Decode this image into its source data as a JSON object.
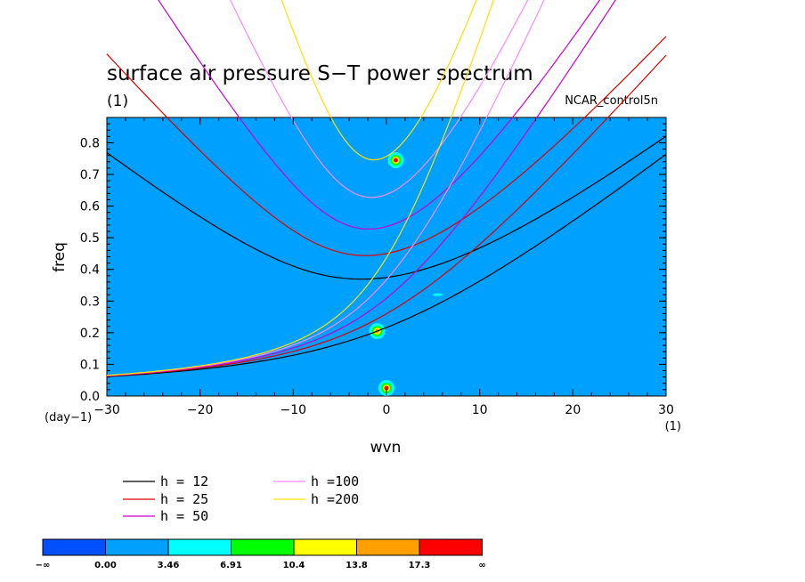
{
  "chart_data": {
    "type": "heatmap",
    "title": "surface air pressure S−T power spectrum",
    "subtitle_left": "(1)",
    "subtitle_right": "NCAR_control5n",
    "xlabel": "wvn",
    "ylabel": "freq",
    "x_unit": "(1)",
    "y_unit": "(day−1)",
    "xlim": [
      -30,
      30
    ],
    "ylim": [
      0,
      0.88
    ],
    "xticks": [
      -30,
      -20,
      -10,
      0,
      10,
      20,
      30
    ],
    "yticks": [
      0.0,
      0.1,
      0.2,
      0.3,
      0.4,
      0.5,
      0.6,
      0.7,
      0.8
    ],
    "background_value_color": "#00a0ff",
    "hotspots": [
      {
        "x": 1,
        "y": 0.745,
        "peak_color": "#ff0000"
      },
      {
        "x": -1,
        "y": 0.205,
        "peak_color": "#ffa000"
      },
      {
        "x": 0,
        "y": 0.025,
        "peak_color": "#ff0000"
      },
      {
        "x": 5.5,
        "y": 0.32,
        "peak_color": "#00ffff"
      }
    ],
    "dispersion_curves": [
      {
        "name": "h = 12",
        "h": 12,
        "color": "#000000"
      },
      {
        "name": "h = 25",
        "h": 25,
        "color": "#e00000"
      },
      {
        "name": "h = 50",
        "h": 50,
        "color": "#cc00cc"
      },
      {
        "name": "h =100",
        "h": 100,
        "color": "#ff88ff"
      },
      {
        "name": "h =200",
        "h": 200,
        "color": "#ffe000"
      }
    ],
    "colorbar": {
      "colors": [
        "#0050ff",
        "#00a0ff",
        "#00ffff",
        "#00ff00",
        "#ffff00",
        "#ffa000",
        "#ff0000"
      ],
      "labels": [
        "−∞",
        "0.00",
        "3.46",
        "6.91",
        "10.4",
        "13.8",
        "17.3",
        "∞"
      ]
    }
  }
}
